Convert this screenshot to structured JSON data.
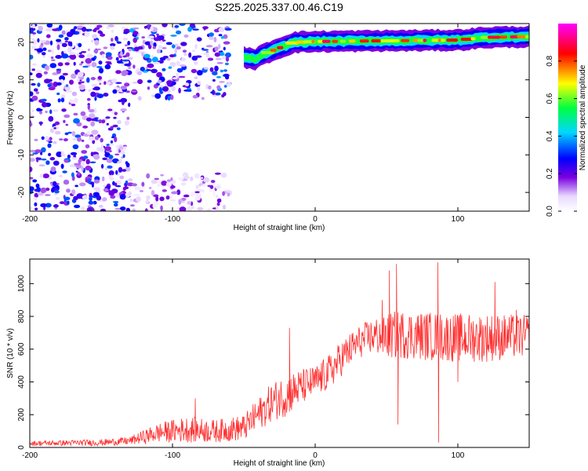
{
  "title": "S225.2025.337.00.46.C19",
  "colors": {
    "snr_line": "#ff3030",
    "spectrogram_bg": "#ffffff",
    "axis": "#000000"
  },
  "chart_data": [
    {
      "type": "heatmap",
      "name": "spectrogram",
      "xlabel": "Height of straight line (km)",
      "ylabel": "Frequency (Hz)",
      "xlim": [
        -200,
        150
      ],
      "ylim": [
        -25,
        25
      ],
      "xticks": [
        -200,
        -100,
        0,
        100
      ],
      "yticks": [
        -20,
        -10,
        0,
        10,
        20
      ],
      "colorbar": {
        "label": "Normalized spectral amplitude",
        "range": [
          0,
          1
        ],
        "ticks": [
          0.0,
          0.2,
          0.4,
          0.6,
          0.8
        ],
        "tick_labels": [
          "0.0",
          "0.2",
          "0.4",
          "0.6",
          "0.8"
        ],
        "colormap": [
          "#ffffff",
          "#7a00e0",
          "#0000ff",
          "#00d8ff",
          "#00ff40",
          "#ffff00",
          "#ff0000",
          "#ff00ff"
        ]
      },
      "ridge": {
        "description_points": [
          {
            "x": -50,
            "y": 16
          },
          {
            "x": -42,
            "y": 15.5
          },
          {
            "x": -35,
            "y": 17
          },
          {
            "x": -25,
            "y": 18.5
          },
          {
            "x": -15,
            "y": 20
          },
          {
            "x": 0,
            "y": 20.2
          },
          {
            "x": 50,
            "y": 20.4
          },
          {
            "x": 100,
            "y": 20.6
          },
          {
            "x": 120,
            "y": 21.3
          },
          {
            "x": 150,
            "y": 21.5
          }
        ],
        "peak_amplitude": 0.9
      },
      "noise_regions": [
        {
          "x_from": -200,
          "x_to": -130,
          "y_from": -25,
          "y_to": 25,
          "amplitude": 0.35
        },
        {
          "x_from": -130,
          "x_to": -60,
          "y_from": 5,
          "y_to": 25,
          "amplitude": 0.4
        },
        {
          "x_from": -130,
          "x_to": -60,
          "y_from": -25,
          "y_to": -15,
          "amplitude": 0.2
        }
      ]
    },
    {
      "type": "line",
      "name": "snr",
      "xlabel": "Height of straight line (km)",
      "ylabel": "SNR (10 * v/v)",
      "xlim": [
        -200,
        150
      ],
      "ylim": [
        0,
        1150
      ],
      "xticks": [
        -200,
        -100,
        0,
        100
      ],
      "yticks": [
        0,
        200,
        400,
        600,
        800,
        1000
      ],
      "series": [
        {
          "name": "SNR",
          "color": "#ff3030",
          "envelope": [
            {
              "x": -200,
              "mean": 25,
              "spread": 15
            },
            {
              "x": -150,
              "mean": 30,
              "spread": 20
            },
            {
              "x": -130,
              "mean": 40,
              "spread": 25
            },
            {
              "x": -110,
              "mean": 90,
              "spread": 60
            },
            {
              "x": -90,
              "mean": 110,
              "spread": 80
            },
            {
              "x": -70,
              "mean": 100,
              "spread": 70
            },
            {
              "x": -50,
              "mean": 120,
              "spread": 80
            },
            {
              "x": -40,
              "mean": 200,
              "spread": 100
            },
            {
              "x": -30,
              "mean": 280,
              "spread": 120
            },
            {
              "x": -20,
              "mean": 320,
              "spread": 130
            },
            {
              "x": -10,
              "mean": 370,
              "spread": 110
            },
            {
              "x": 0,
              "mean": 400,
              "spread": 100
            },
            {
              "x": 10,
              "mean": 460,
              "spread": 110
            },
            {
              "x": 20,
              "mean": 560,
              "spread": 110
            },
            {
              "x": 30,
              "mean": 640,
              "spread": 100
            },
            {
              "x": 40,
              "mean": 680,
              "spread": 110
            },
            {
              "x": 50,
              "mean": 680,
              "spread": 140
            },
            {
              "x": 60,
              "mean": 690,
              "spread": 150
            },
            {
              "x": 80,
              "mean": 680,
              "spread": 150
            },
            {
              "x": 100,
              "mean": 670,
              "spread": 150
            },
            {
              "x": 120,
              "mean": 670,
              "spread": 150
            },
            {
              "x": 150,
              "mean": 680,
              "spread": 130
            }
          ],
          "spikes": [
            {
              "x": -84,
              "y": 300
            },
            {
              "x": -18,
              "y": 730
            },
            {
              "x": 52,
              "y": 1080
            },
            {
              "x": 57,
              "y": 1120
            },
            {
              "x": 58,
              "y": 140
            },
            {
              "x": 86,
              "y": 1130
            },
            {
              "x": 86.5,
              "y": 30
            },
            {
              "x": 47,
              "y": 900
            },
            {
              "x": 100,
              "y": 400
            },
            {
              "x": 126,
              "y": 1010
            },
            {
              "x": 141,
              "y": 840
            }
          ]
        }
      ]
    }
  ]
}
